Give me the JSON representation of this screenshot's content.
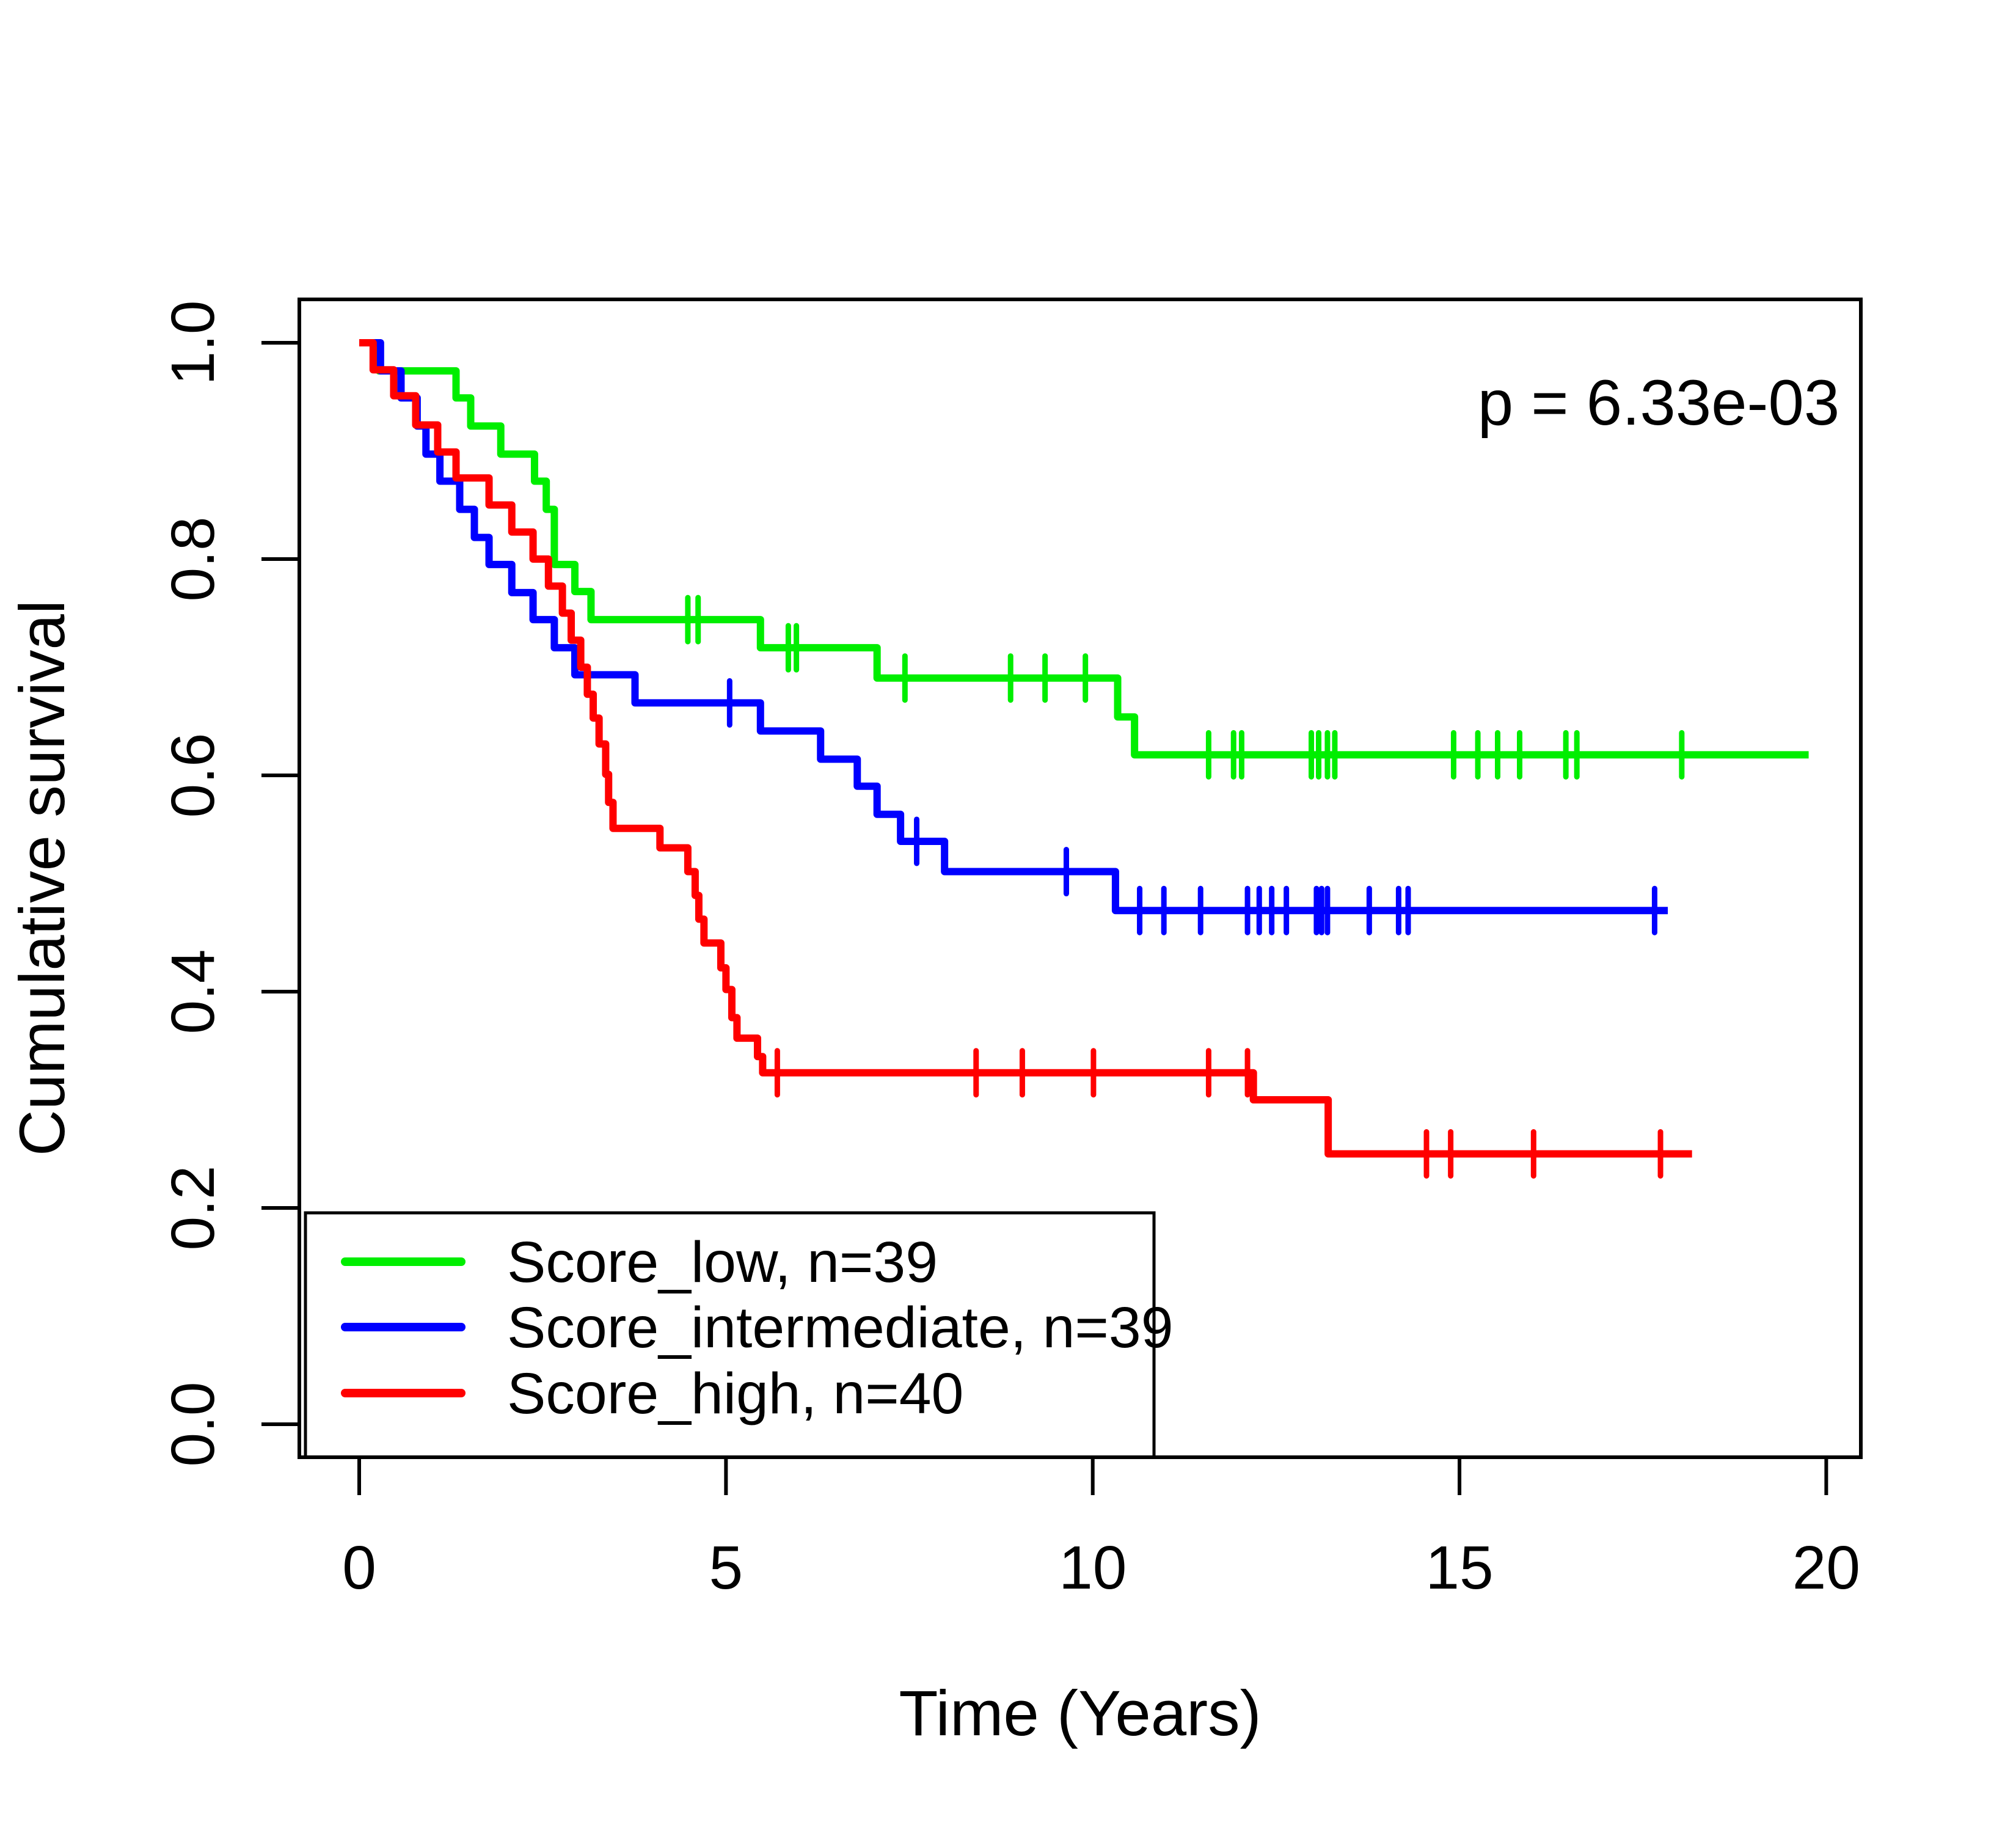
{
  "annotation": {
    "p_value_label": "p = 6.33e-03"
  },
  "axes": {
    "x": {
      "title": "Time (Years)",
      "tick_labels": [
        "0",
        "5",
        "10",
        "15",
        "20"
      ],
      "tick_values": [
        0,
        5,
        10,
        15,
        20
      ]
    },
    "y": {
      "title": "Cumulative survival",
      "tick_labels": [
        "0.0",
        "0.2",
        "0.4",
        "0.6",
        "0.8",
        "1.0"
      ],
      "tick_values": [
        0.0,
        0.2,
        0.4,
        0.6,
        0.8,
        1.0
      ]
    }
  },
  "legend": {
    "entries": [
      {
        "label": "Score_low, n=39",
        "color": "#00ee00"
      },
      {
        "label": "Score_intermediate, n=39",
        "color": "#0000ff"
      },
      {
        "label": "Score_high, n=40",
        "color": "#ff0000"
      }
    ]
  },
  "colors": {
    "low": "#00ee00",
    "intermediate": "#0000ff",
    "high": "#ff0000",
    "axis": "#000000"
  },
  "chart_data": {
    "type": "line",
    "subtype": "kaplan-meier-step",
    "title": "",
    "xlabel": "Time (Years)",
    "ylabel": "Cumulative survival",
    "xlim": [
      0,
      20
    ],
    "ylim": [
      0,
      1
    ],
    "grid": false,
    "legend_position": "bottomleft",
    "p_value": "p = 6.33e-03",
    "series": [
      {
        "id": "score-low",
        "name": "Score_low, n=39",
        "color": "#00ee00",
        "n": 39,
        "end_time": 19.76,
        "steps": [
          [
            0,
            1.0
          ],
          [
            0.27,
            0.974
          ],
          [
            1.32,
            0.949
          ],
          [
            1.52,
            0.923
          ],
          [
            1.93,
            0.897
          ],
          [
            2.39,
            0.872
          ],
          [
            2.55,
            0.846
          ],
          [
            2.66,
            0.795
          ],
          [
            2.94,
            0.77
          ],
          [
            3.16,
            0.744
          ],
          [
            5.47,
            0.718
          ],
          [
            7.06,
            0.69
          ],
          [
            10.34,
            0.654
          ],
          [
            10.57,
            0.619
          ]
        ],
        "censors": [
          [
            4.48,
            0.744
          ],
          [
            4.62,
            0.744
          ],
          [
            5.85,
            0.718
          ],
          [
            5.96,
            0.718
          ],
          [
            7.44,
            0.69
          ],
          [
            8.88,
            0.69
          ],
          [
            9.35,
            0.69
          ],
          [
            9.9,
            0.69
          ],
          [
            11.58,
            0.619
          ],
          [
            11.92,
            0.619
          ],
          [
            12.03,
            0.619
          ],
          [
            12.98,
            0.619
          ],
          [
            13.08,
            0.619
          ],
          [
            13.2,
            0.619
          ],
          [
            13.3,
            0.619
          ],
          [
            14.92,
            0.619
          ],
          [
            15.25,
            0.619
          ],
          [
            15.52,
            0.619
          ],
          [
            15.82,
            0.619
          ],
          [
            16.45,
            0.619
          ],
          [
            16.6,
            0.619
          ],
          [
            18.03,
            0.619
          ]
        ]
      },
      {
        "id": "score-intermediate",
        "name": "Score_intermediate, n=39",
        "color": "#0000ff",
        "n": 39,
        "end_time": 17.84,
        "steps": [
          [
            0,
            1.0
          ],
          [
            0.29,
            0.974
          ],
          [
            0.57,
            0.949
          ],
          [
            0.79,
            0.923
          ],
          [
            0.91,
            0.897
          ],
          [
            1.1,
            0.872
          ],
          [
            1.37,
            0.846
          ],
          [
            1.57,
            0.82
          ],
          [
            1.77,
            0.795
          ],
          [
            2.08,
            0.769
          ],
          [
            2.37,
            0.744
          ],
          [
            2.66,
            0.718
          ],
          [
            2.94,
            0.693
          ],
          [
            3.76,
            0.667
          ],
          [
            5.47,
            0.641
          ],
          [
            6.29,
            0.615
          ],
          [
            6.79,
            0.59
          ],
          [
            7.06,
            0.564
          ],
          [
            7.38,
            0.539
          ],
          [
            7.98,
            0.511
          ],
          [
            10.31,
            0.475
          ]
        ],
        "censors": [
          [
            5.05,
            0.667
          ],
          [
            7.6,
            0.539
          ],
          [
            9.64,
            0.511
          ],
          [
            10.64,
            0.475
          ],
          [
            10.97,
            0.475
          ],
          [
            11.47,
            0.475
          ],
          [
            12.11,
            0.475
          ],
          [
            12.27,
            0.475
          ],
          [
            12.44,
            0.475
          ],
          [
            12.64,
            0.475
          ],
          [
            13.05,
            0.475
          ],
          [
            13.12,
            0.475
          ],
          [
            13.2,
            0.475
          ],
          [
            13.77,
            0.475
          ],
          [
            14.17,
            0.475
          ],
          [
            14.3,
            0.475
          ],
          [
            17.66,
            0.475
          ]
        ]
      },
      {
        "id": "score-high",
        "name": "Score_high, n=40",
        "color": "#ff0000",
        "n": 40,
        "end_time": 18.17,
        "steps": [
          [
            0,
            1.0
          ],
          [
            0.19,
            0.975
          ],
          [
            0.47,
            0.951
          ],
          [
            0.77,
            0.924
          ],
          [
            1.07,
            0.899
          ],
          [
            1.32,
            0.875
          ],
          [
            1.77,
            0.85
          ],
          [
            2.08,
            0.825
          ],
          [
            2.37,
            0.8
          ],
          [
            2.58,
            0.775
          ],
          [
            2.77,
            0.75
          ],
          [
            2.89,
            0.725
          ],
          [
            3.02,
            0.7
          ],
          [
            3.11,
            0.675
          ],
          [
            3.19,
            0.653
          ],
          [
            3.27,
            0.629
          ],
          [
            3.36,
            0.601
          ],
          [
            3.4,
            0.575
          ],
          [
            3.46,
            0.551
          ],
          [
            4.1,
            0.533
          ],
          [
            4.48,
            0.511
          ],
          [
            4.58,
            0.489
          ],
          [
            4.63,
            0.467
          ],
          [
            4.7,
            0.445
          ],
          [
            4.93,
            0.422
          ],
          [
            5.0,
            0.402
          ],
          [
            5.08,
            0.376
          ],
          [
            5.15,
            0.357
          ],
          [
            5.43,
            0.34
          ],
          [
            5.5,
            0.325
          ],
          [
            12.19,
            0.3
          ],
          [
            13.21,
            0.25
          ]
        ],
        "censors": [
          [
            5.7,
            0.325
          ],
          [
            8.41,
            0.325
          ],
          [
            9.04,
            0.325
          ],
          [
            10.01,
            0.325
          ],
          [
            11.58,
            0.325
          ],
          [
            12.11,
            0.325
          ],
          [
            14.55,
            0.25
          ],
          [
            14.88,
            0.25
          ],
          [
            16.01,
            0.25
          ],
          [
            17.74,
            0.25
          ]
        ]
      }
    ]
  }
}
